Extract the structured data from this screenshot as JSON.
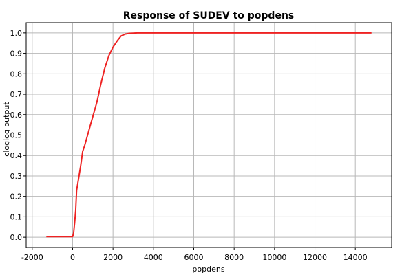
{
  "chart_data": {
    "type": "line",
    "title": "Response of SUDEV to popdens",
    "xlabel": "popdens",
    "ylabel": "cloglog output",
    "xlim": [
      -2300,
      15800
    ],
    "ylim": [
      -0.05,
      1.05
    ],
    "xticks": [
      "-2000",
      "0",
      "2000",
      "4000",
      "6000",
      "8000",
      "10000",
      "12000",
      "14000"
    ],
    "yticks": [
      "0.0",
      "0.1",
      "0.2",
      "0.3",
      "0.4",
      "0.5",
      "0.6",
      "0.7",
      "0.8",
      "0.9",
      "1.0"
    ],
    "grid": true,
    "series": [
      {
        "color": "#ee2222",
        "x": [
          -1300,
          -1000,
          -500,
          0,
          50,
          100,
          150,
          200,
          300,
          400,
          500,
          600,
          800,
          1000,
          1200,
          1400,
          1600,
          1800,
          2000,
          2200,
          2400,
          2600,
          2800,
          3000,
          3200,
          4000,
          6000,
          8000,
          10000,
          12000,
          14000,
          14800
        ],
        "y": [
          0.003,
          0.003,
          0.003,
          0.003,
          0.02,
          0.07,
          0.13,
          0.23,
          0.29,
          0.35,
          0.42,
          0.45,
          0.52,
          0.59,
          0.66,
          0.75,
          0.83,
          0.89,
          0.93,
          0.96,
          0.985,
          0.994,
          0.998,
          0.999,
          1.0,
          1.0,
          1.0,
          1.0,
          1.0,
          1.0,
          1.0,
          1.0
        ]
      }
    ]
  }
}
